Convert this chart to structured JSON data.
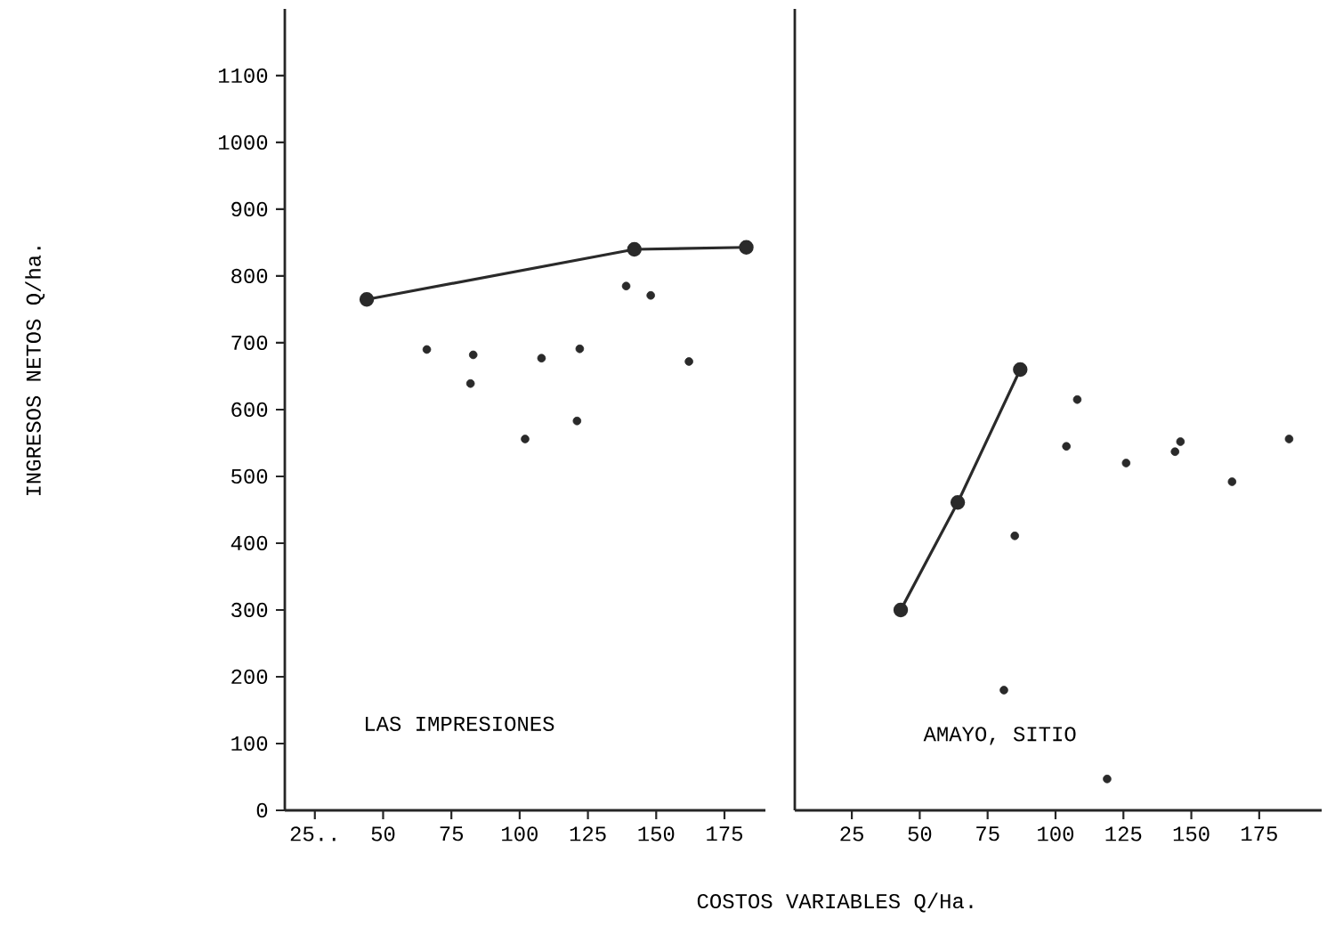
{
  "chart_data": [
    {
      "type": "scatter",
      "ylabel": "INGRESOS NETOS Q/ha.",
      "annotations": [
        "LAS IMPRESIONES"
      ],
      "marker": "circle",
      "line_style": "solid",
      "xlim": [
        14,
        190
      ],
      "ylim": [
        0,
        1200
      ],
      "xticks": [
        {
          "value": 25,
          "label": "25.."
        },
        50,
        75,
        100,
        125,
        150,
        175
      ],
      "yticks": [
        0,
        100,
        200,
        300,
        400,
        500,
        600,
        700,
        800,
        900,
        1000,
        1100
      ],
      "series": [
        {
          "type": "line",
          "color": "#2a2a2a",
          "x": [
            44,
            142,
            183
          ],
          "values": [
            765,
            840,
            843
          ]
        },
        {
          "color": "#2a2a2a",
          "x": [
            66,
            83,
            82,
            102,
            108,
            122,
            121,
            139,
            148,
            162
          ],
          "values": [
            690,
            682,
            639,
            556,
            677,
            691,
            583,
            785,
            771,
            672
          ]
        }
      ]
    },
    {
      "type": "scatter",
      "xlabel": "COSTOS VARIABLES Q/Ha.",
      "annotations": [
        "AMAYO, SITIO"
      ],
      "marker": "circle",
      "line_style": "solid",
      "tick_labels": "x",
      "xlim": [
        4,
        198
      ],
      "ylim": [
        0,
        1200
      ],
      "xticks": [
        25,
        50,
        75,
        100,
        125,
        150,
        175
      ],
      "series": [
        {
          "type": "line",
          "color": "#2a2a2a",
          "x": [
            43,
            64,
            87
          ],
          "values": [
            300,
            461,
            660
          ]
        },
        {
          "color": "#2a2a2a",
          "x": [
            108,
            104,
            126,
            146,
            144,
            165,
            186,
            85,
            81,
            119
          ],
          "values": [
            615,
            545,
            520,
            552,
            537,
            492,
            556,
            411,
            180,
            47
          ]
        }
      ]
    }
  ]
}
